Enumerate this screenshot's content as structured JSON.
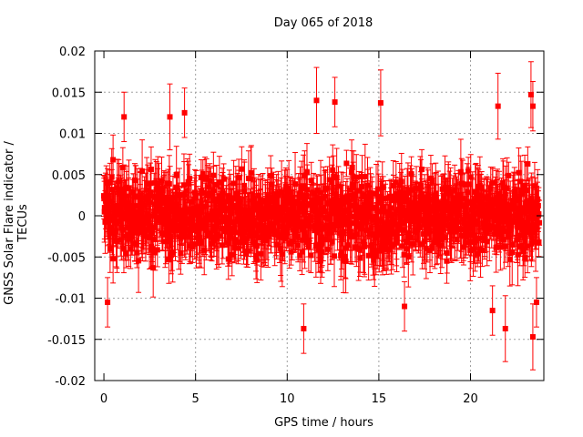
{
  "chart_data": {
    "type": "scatter",
    "title": "Day 065 of 2018",
    "xlabel": "GPS time / hours",
    "ylabel": "GNSS Solar Flare indicator / TECUs",
    "xlim": [
      -0.5,
      24
    ],
    "ylim": [
      -0.02,
      0.02
    ],
    "xticks": [
      0,
      5,
      10,
      15,
      20
    ],
    "xtick_labels": [
      "0",
      "5",
      "10",
      "15",
      "20"
    ],
    "yticks": [
      0.02,
      0.015,
      0.01,
      0.005,
      0,
      -0.005,
      -0.01,
      -0.015,
      -0.02
    ],
    "ytick_labels": [
      "0.02",
      "0.015",
      "0.01",
      "0.005",
      "0",
      "-0.005",
      "-0.01",
      "-0.015",
      "-0.02"
    ],
    "grid": true,
    "series": [
      {
        "name": "solar flare indicator",
        "color": "#ff0000",
        "marker": "square",
        "error_bars": true,
        "x_range": [
          0,
          23.75
        ],
        "typical_range": [
          -0.008,
          0.008
        ],
        "points": [
          {
            "x": 0.5,
            "y": 0.0068,
            "err": 0.003
          },
          {
            "x": 1.1,
            "y": 0.012,
            "err": 0.003
          },
          {
            "x": 3.6,
            "y": 0.012,
            "err": 0.004
          },
          {
            "x": 4.4,
            "y": 0.0125,
            "err": 0.003
          },
          {
            "x": 11.6,
            "y": 0.014,
            "err": 0.004
          },
          {
            "x": 12.6,
            "y": 0.0138,
            "err": 0.003
          },
          {
            "x": 15.1,
            "y": 0.0137,
            "err": 0.004
          },
          {
            "x": 21.5,
            "y": 0.0133,
            "err": 0.004
          },
          {
            "x": 23.3,
            "y": 0.0147,
            "err": 0.004
          },
          {
            "x": 23.4,
            "y": 0.0133,
            "err": 0.003
          },
          {
            "x": 10.9,
            "y": -0.0137,
            "err": 0.003
          },
          {
            "x": 21.9,
            "y": -0.0137,
            "err": 0.004
          },
          {
            "x": 23.4,
            "y": -0.0147,
            "err": 0.004
          },
          {
            "x": 0.2,
            "y": -0.0105,
            "err": 0.003
          },
          {
            "x": 16.4,
            "y": -0.011,
            "err": 0.003
          },
          {
            "x": 21.2,
            "y": -0.0115,
            "err": 0.003
          },
          {
            "x": 23.6,
            "y": -0.0105,
            "err": 0.003
          }
        ]
      }
    ]
  }
}
